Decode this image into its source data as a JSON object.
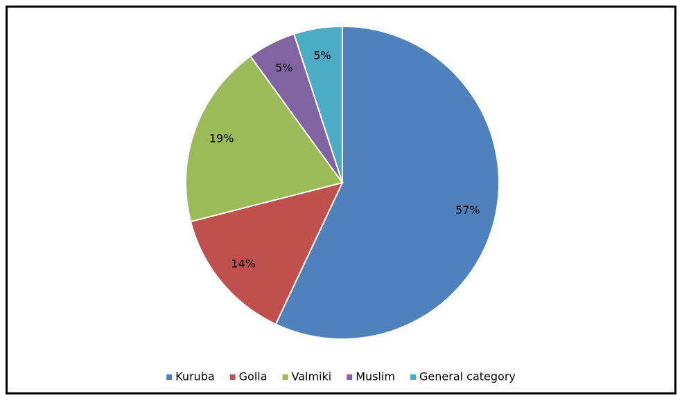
{
  "chart_data": {
    "type": "pie",
    "categories": [
      "Kuruba",
      "Golla",
      "Valmiki",
      "Muslim",
      "General category"
    ],
    "values": [
      57,
      14,
      19,
      5,
      5
    ],
    "value_labels": [
      "57%",
      "14%",
      "19%",
      "5%",
      "5%"
    ],
    "colors": [
      "#4f81bd",
      "#c0504d",
      "#9bbb59",
      "#8064a2",
      "#4bacc6"
    ],
    "legend": "bottom"
  }
}
